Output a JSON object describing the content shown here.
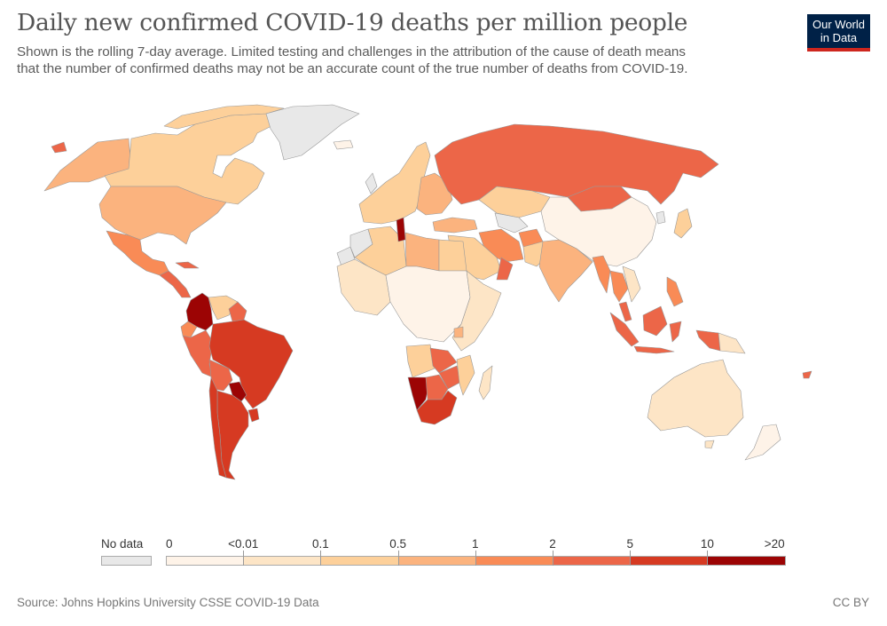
{
  "header": {
    "title": "Daily new confirmed COVID-19 deaths per million people",
    "subtitle_line1": "Shown is the rolling 7-day average. Limited testing and challenges in the attribution of the cause of death means",
    "subtitle_line2": "that the number of confirmed deaths may not be an accurate count of the true number of deaths from COVID-19."
  },
  "logo": {
    "line1": "Our World",
    "line2": "in Data",
    "bg": "#002147",
    "accent": "#ce261e"
  },
  "legend": {
    "no_data_label": "No data",
    "no_data_color": "#e8e8e8",
    "bins": [
      {
        "from": "0",
        "to": "<0.01",
        "color": "#fef3e8"
      },
      {
        "from": "<0.01",
        "to": "0.1",
        "color": "#fde5c6"
      },
      {
        "from": "0.1",
        "to": "0.5",
        "color": "#fdd09a"
      },
      {
        "from": "0.5",
        "to": "1",
        "color": "#fbb37e"
      },
      {
        "from": "1",
        "to": "2",
        "color": "#f98b56"
      },
      {
        "from": "2",
        "to": "5",
        "color": "#ec6648"
      },
      {
        "from": "5",
        "to": "10",
        "color": "#d63a22"
      },
      {
        "from": "10",
        "to": ">20",
        "color": "#9c0404"
      }
    ],
    "tick_labels": [
      "0",
      "<0.01",
      "0.1",
      "0.5",
      "1",
      "2",
      "5",
      "10",
      ">20"
    ]
  },
  "chart_data": {
    "type": "choropleth",
    "title": "Daily new confirmed COVID-19 deaths per million people",
    "metric": "Daily new confirmed deaths per million (7-day rolling average)",
    "regions": [
      {
        "name": "Greenland",
        "bin": "No data"
      },
      {
        "name": "Canada",
        "bin": "0.1-0.5"
      },
      {
        "name": "Alaska (USA)",
        "bin": "0.5-1"
      },
      {
        "name": "United States",
        "bin": "0.5-1"
      },
      {
        "name": "Mexico",
        "bin": "1-2"
      },
      {
        "name": "Cuba",
        "bin": "2-5"
      },
      {
        "name": "Central America",
        "bin": "2-5"
      },
      {
        "name": "Colombia",
        "bin": ">10"
      },
      {
        "name": "Venezuela",
        "bin": "0.1-0.5"
      },
      {
        "name": "Guyana/Suriname",
        "bin": "2-5"
      },
      {
        "name": "Ecuador",
        "bin": "1-2"
      },
      {
        "name": "Peru",
        "bin": "2-5"
      },
      {
        "name": "Brazil",
        "bin": "5-10"
      },
      {
        "name": "Bolivia",
        "bin": "2-5"
      },
      {
        "name": "Paraguay",
        "bin": ">10"
      },
      {
        "name": "Argentina",
        "bin": "5-10"
      },
      {
        "name": "Chile",
        "bin": "5-10"
      },
      {
        "name": "Uruguay",
        "bin": "5-10"
      },
      {
        "name": "Iceland",
        "bin": "0-<0.01"
      },
      {
        "name": "Western Europe",
        "bin": "0.1-0.5"
      },
      {
        "name": "Eastern Europe",
        "bin": "0.5-1"
      },
      {
        "name": "Russia",
        "bin": "2-5"
      },
      {
        "name": "Kazakhstan",
        "bin": "0.1-0.5"
      },
      {
        "name": "Turkmenistan/Uzbekistan",
        "bin": "No data"
      },
      {
        "name": "Mongolia",
        "bin": "2-5"
      },
      {
        "name": "China",
        "bin": "0-<0.01"
      },
      {
        "name": "North Korea",
        "bin": "No data"
      },
      {
        "name": "Japan",
        "bin": "0.1-0.5"
      },
      {
        "name": "Turkey",
        "bin": "0.5-1"
      },
      {
        "name": "Iran",
        "bin": "1-2"
      },
      {
        "name": "Afghanistan",
        "bin": "1-2"
      },
      {
        "name": "Pakistan",
        "bin": "0.1-0.5"
      },
      {
        "name": "India",
        "bin": "0.5-1"
      },
      {
        "name": "Saudi Arabia",
        "bin": "0.1-0.5"
      },
      {
        "name": "Oman",
        "bin": "2-5"
      },
      {
        "name": "Myanmar",
        "bin": "1-2"
      },
      {
        "name": "Thailand",
        "bin": "1-2"
      },
      {
        "name": "Vietnam",
        "bin": "<0.01-0.1"
      },
      {
        "name": "Malaysia",
        "bin": "2-5"
      },
      {
        "name": "Philippines",
        "bin": "1-2"
      },
      {
        "name": "Indonesia",
        "bin": "2-5"
      },
      {
        "name": "Papua New Guinea",
        "bin": "<0.01-0.1"
      },
      {
        "name": "Australia",
        "bin": "<0.01-0.1"
      },
      {
        "name": "New Zealand",
        "bin": "0-<0.01"
      },
      {
        "name": "Tunisia",
        "bin": ">10"
      },
      {
        "name": "Algeria",
        "bin": "0.1-0.5"
      },
      {
        "name": "Libya",
        "bin": "0.5-1"
      },
      {
        "name": "Egypt",
        "bin": "0.1-0.5"
      },
      {
        "name": "Western Sahara",
        "bin": "No data"
      },
      {
        "name": "Sahel & Central Africa",
        "bin": "0-<0.01"
      },
      {
        "name": "West Africa",
        "bin": "<0.01-0.1"
      },
      {
        "name": "East Africa",
        "bin": "<0.01-0.1"
      },
      {
        "name": "Uganda",
        "bin": "0.5-1"
      },
      {
        "name": "Angola",
        "bin": "0.1-0.5"
      },
      {
        "name": "Zambia",
        "bin": "2-5"
      },
      {
        "name": "Zimbabwe",
        "bin": "2-5"
      },
      {
        "name": "Botswana",
        "bin": "2-5"
      },
      {
        "name": "Namibia",
        "bin": ">10"
      },
      {
        "name": "South Africa",
        "bin": "5-10"
      },
      {
        "name": "Mozambique",
        "bin": "0.1-0.5"
      },
      {
        "name": "Madagascar",
        "bin": "<0.01-0.1"
      },
      {
        "name": "Fiji",
        "bin": "2-5"
      }
    ]
  },
  "footer": {
    "source": "Source: Johns Hopkins University CSSE COVID-19 Data",
    "license": "CC BY"
  }
}
